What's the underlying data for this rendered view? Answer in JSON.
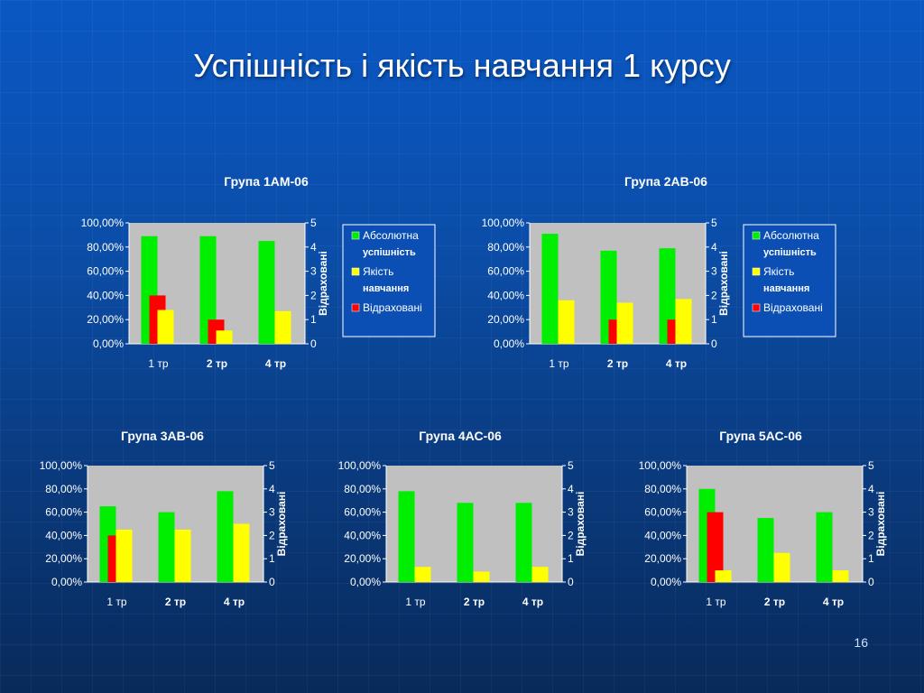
{
  "slide": {
    "title": "Успішність і якість навчання 1 курсу",
    "page_number": "16"
  },
  "legend": {
    "entries": [
      {
        "lines": [
          "Абсолютна",
          "успішність"
        ],
        "color": "#00ee00"
      },
      {
        "lines": [
          "Якість",
          "навчання"
        ],
        "color": "#ffff00"
      },
      {
        "lines": [
          "Відраховані"
        ],
        "color": "#ff0000"
      }
    ]
  },
  "chart_data": [
    {
      "type": "bar",
      "title": "Група 1АМ-06",
      "categories": [
        "1 тр",
        "2 тр",
        "4 тр"
      ],
      "y_ticks": [
        "0,00%",
        "20,00%",
        "40,00%",
        "60,00%",
        "80,00%",
        "100,00%"
      ],
      "y2_ticks": [
        "0",
        "1",
        "2",
        "3",
        "4",
        "5"
      ],
      "ylim": [
        0,
        100
      ],
      "y2lim": [
        0,
        5
      ],
      "y2label": "Відраховані",
      "series": [
        {
          "name": "Абсолютна успішність",
          "axis": "left",
          "color": "#00ee00",
          "values": [
            89,
            89,
            85
          ]
        },
        {
          "name": "Відраховані",
          "axis": "right",
          "color": "#ff0000",
          "values": [
            2,
            1,
            0
          ]
        },
        {
          "name": "Якість навчання",
          "axis": "left",
          "color": "#ffff00",
          "values": [
            28,
            11,
            27
          ]
        }
      ],
      "legend": true,
      "grid": false
    },
    {
      "type": "bar",
      "title": "Група 2АВ-06",
      "categories": [
        "1 тр",
        "2 тр",
        "4 тр"
      ],
      "y_ticks": [
        "0,00%",
        "20,00%",
        "40,00%",
        "60,00%",
        "80,00%",
        "100,00%"
      ],
      "y2_ticks": [
        "0",
        "1",
        "2",
        "3",
        "4",
        "5"
      ],
      "ylim": [
        0,
        100
      ],
      "y2lim": [
        0,
        5
      ],
      "y2label": "Відраховані",
      "series": [
        {
          "name": "Абсолютна успішність",
          "axis": "left",
          "color": "#00ee00",
          "values": [
            91,
            77,
            79
          ]
        },
        {
          "name": "Відраховані",
          "axis": "right",
          "color": "#ff0000",
          "values": [
            0,
            1,
            1
          ]
        },
        {
          "name": "Якість навчання",
          "axis": "left",
          "color": "#ffff00",
          "values": [
            36,
            34,
            37
          ]
        }
      ],
      "legend": true,
      "grid": false
    },
    {
      "type": "bar",
      "title": "Група 3АВ-06",
      "categories": [
        "1 тр",
        "2 тр",
        "4 тр"
      ],
      "y_ticks": [
        "0,00%",
        "20,00%",
        "40,00%",
        "60,00%",
        "80,00%",
        "100,00%"
      ],
      "y2_ticks": [
        "0",
        "1",
        "2",
        "3",
        "4",
        "5"
      ],
      "ylim": [
        0,
        100
      ],
      "y2lim": [
        0,
        5
      ],
      "y2label": "Відраховані",
      "series": [
        {
          "name": "Абсолютна успішність",
          "axis": "left",
          "color": "#00ee00",
          "values": [
            65,
            60,
            78
          ]
        },
        {
          "name": "Відраховані",
          "axis": "right",
          "color": "#ff0000",
          "values": [
            2,
            0,
            0
          ]
        },
        {
          "name": "Якість навчання",
          "axis": "left",
          "color": "#ffff00",
          "values": [
            45,
            45,
            50
          ]
        }
      ],
      "legend": false,
      "grid": false
    },
    {
      "type": "bar",
      "title": "Група 4АС-06",
      "categories": [
        "1 тр",
        "2 тр",
        "4 тр"
      ],
      "y_ticks": [
        "0,00%",
        "20,00%",
        "40,00%",
        "60,00%",
        "80,00%",
        "100,00%"
      ],
      "y2_ticks": [
        "0",
        "1",
        "2",
        "3",
        "4",
        "5"
      ],
      "ylim": [
        0,
        100
      ],
      "y2lim": [
        0,
        5
      ],
      "y2label": "Відраховані",
      "series": [
        {
          "name": "Абсолютна успішність",
          "axis": "left",
          "color": "#00ee00",
          "values": [
            78,
            68,
            68
          ]
        },
        {
          "name": "Відраховані",
          "axis": "right",
          "color": "#ff0000",
          "values": [
            0,
            0,
            0
          ]
        },
        {
          "name": "Якість навчання",
          "axis": "left",
          "color": "#ffff00",
          "values": [
            13,
            9,
            13
          ]
        }
      ],
      "legend": false,
      "grid": false
    },
    {
      "type": "bar",
      "title": "Група 5АС-06",
      "categories": [
        "1 тр",
        "2 тр",
        "4 тр"
      ],
      "y_ticks": [
        "0,00%",
        "20,00%",
        "40,00%",
        "60,00%",
        "80,00%",
        "100,00%"
      ],
      "y2_ticks": [
        "0",
        "1",
        "2",
        "3",
        "4",
        "5"
      ],
      "ylim": [
        0,
        100
      ],
      "y2lim": [
        0,
        5
      ],
      "y2label": "Відраховані",
      "series": [
        {
          "name": "Абсолютна успішність",
          "axis": "left",
          "color": "#00ee00",
          "values": [
            80,
            55,
            60
          ]
        },
        {
          "name": "Відраховані",
          "axis": "right",
          "color": "#ff0000",
          "values": [
            3,
            0,
            0
          ]
        },
        {
          "name": "Якість навчання",
          "axis": "left",
          "color": "#ffff00",
          "values": [
            10,
            25,
            10
          ]
        }
      ],
      "legend": false,
      "grid": false
    }
  ]
}
